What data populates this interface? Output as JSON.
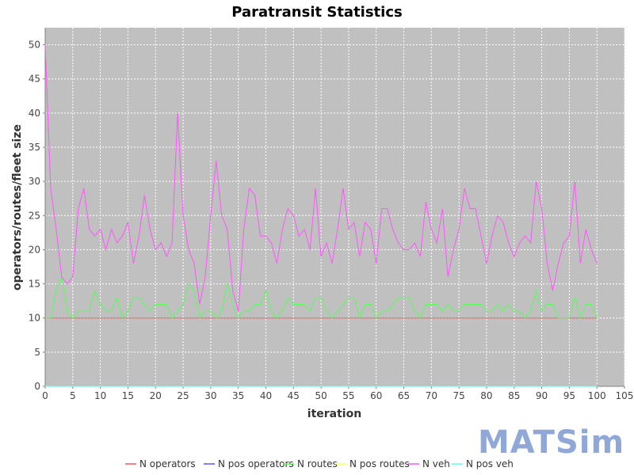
{
  "logo": {
    "text": "MATSim",
    "color": "#8fa8d8"
  },
  "chart_data": {
    "type": "line",
    "title": "Paratransit Statistics",
    "xlabel": "iteration",
    "ylabel": "operators/routes/fleet size",
    "xlim": [
      0,
      105
    ],
    "ylim": [
      0,
      52.5
    ],
    "xticks": [
      0,
      5,
      10,
      15,
      20,
      25,
      30,
      35,
      40,
      45,
      50,
      55,
      60,
      65,
      70,
      75,
      80,
      85,
      90,
      95,
      100,
      105
    ],
    "yticks": [
      0,
      5,
      10,
      15,
      20,
      25,
      30,
      35,
      40,
      45,
      50
    ],
    "grid": true,
    "plot_background": "#c0c0c0",
    "legend_position": "bottom",
    "x": [
      0,
      1,
      2,
      3,
      4,
      5,
      6,
      7,
      8,
      9,
      10,
      11,
      12,
      13,
      14,
      15,
      16,
      17,
      18,
      19,
      20,
      21,
      22,
      23,
      24,
      25,
      26,
      27,
      28,
      29,
      30,
      31,
      32,
      33,
      34,
      35,
      36,
      37,
      38,
      39,
      40,
      41,
      42,
      43,
      44,
      45,
      46,
      47,
      48,
      49,
      50,
      51,
      52,
      53,
      54,
      55,
      56,
      57,
      58,
      59,
      60,
      61,
      62,
      63,
      64,
      65,
      66,
      67,
      68,
      69,
      70,
      71,
      72,
      73,
      74,
      75,
      76,
      77,
      78,
      79,
      80,
      81,
      82,
      83,
      84,
      85,
      86,
      87,
      88,
      89,
      90,
      91,
      92,
      93,
      94,
      95,
      96,
      97,
      98,
      99,
      100
    ],
    "series": [
      {
        "name": "N operators",
        "color": "#ff5555",
        "values": [
          10,
          10,
          10,
          10,
          10,
          10,
          10,
          10,
          10,
          10,
          10,
          10,
          10,
          10,
          10,
          10,
          10,
          10,
          10,
          10,
          10,
          10,
          10,
          10,
          10,
          10,
          10,
          10,
          10,
          10,
          10,
          10,
          10,
          10,
          10,
          10,
          10,
          10,
          10,
          10,
          10,
          10,
          10,
          10,
          10,
          10,
          10,
          10,
          10,
          10,
          10,
          10,
          10,
          10,
          10,
          10,
          10,
          10,
          10,
          10,
          10,
          10,
          10,
          10,
          10,
          10,
          10,
          10,
          10,
          10,
          10,
          10,
          10,
          10,
          10,
          10,
          10,
          10,
          10,
          10,
          10,
          10,
          10,
          10,
          10,
          10,
          10,
          10,
          10,
          10,
          10,
          10,
          10,
          10,
          10,
          10,
          10,
          10,
          10,
          10,
          10
        ]
      },
      {
        "name": "N pos operators",
        "color": "#5555ff",
        "values": [
          0,
          0,
          0,
          0,
          0,
          0,
          0,
          0,
          0,
          0,
          0,
          0,
          0,
          0,
          0,
          0,
          0,
          0,
          0,
          0,
          0,
          0,
          0,
          0,
          0,
          0,
          0,
          0,
          0,
          0,
          0,
          0,
          0,
          0,
          0,
          0,
          0,
          0,
          0,
          0,
          0,
          0,
          0,
          0,
          0,
          0,
          0,
          0,
          0,
          0,
          0,
          0,
          0,
          0,
          0,
          0,
          0,
          0,
          0,
          0,
          0,
          0,
          0,
          0,
          0,
          0,
          0,
          0,
          0,
          0,
          0,
          0,
          0,
          0,
          0,
          0,
          0,
          0,
          0,
          0,
          0,
          0,
          0,
          0,
          0,
          0,
          0,
          0,
          0,
          0,
          0,
          0,
          0,
          0,
          0,
          0,
          0,
          0,
          0,
          0,
          0
        ]
      },
      {
        "name": "N routes",
        "color": "#55ff55",
        "values": [
          10,
          10,
          14,
          16,
          11,
          10,
          11,
          11,
          11,
          14,
          12,
          11,
          11,
          13,
          10,
          11,
          13,
          13,
          12,
          11,
          12,
          12,
          12,
          10,
          11,
          12,
          15,
          14,
          10,
          11,
          11,
          10,
          11,
          15,
          12,
          10,
          11,
          11,
          12,
          12,
          14,
          11,
          10,
          11,
          13,
          12,
          12,
          12,
          11,
          13,
          13,
          11,
          10,
          11,
          12,
          13,
          13,
          10,
          12,
          12,
          10,
          11,
          11,
          12,
          13,
          13,
          13,
          11,
          10,
          12,
          12,
          12,
          11,
          12,
          11,
          11,
          12,
          12,
          12,
          12,
          11,
          11,
          12,
          11,
          12,
          11,
          11,
          10,
          11,
          14,
          11,
          12,
          12,
          10,
          10,
          10,
          13,
          10,
          12,
          12,
          10
        ]
      },
      {
        "name": "N pos routes",
        "color": "#ffff55",
        "values": [
          0,
          0,
          0,
          0,
          0,
          0,
          0,
          0,
          0,
          0,
          0,
          0,
          0,
          0,
          0,
          0,
          0,
          0,
          0,
          0,
          0,
          0,
          0,
          0,
          0,
          0,
          0,
          0,
          0,
          0,
          0,
          0,
          0,
          0,
          0,
          0,
          0,
          0,
          0,
          0,
          0,
          0,
          0,
          0,
          0,
          0,
          0,
          0,
          0,
          0,
          0,
          0,
          0,
          0,
          0,
          0,
          0,
          0,
          0,
          0,
          0,
          0,
          0,
          0,
          0,
          0,
          0,
          0,
          0,
          0,
          0,
          0,
          0,
          0,
          0,
          0,
          0,
          0,
          0,
          0,
          0,
          0,
          0,
          0,
          0,
          0,
          0,
          0,
          0,
          0,
          0,
          0,
          0,
          0,
          0,
          0,
          0,
          0,
          0,
          0,
          0
        ]
      },
      {
        "name": "N veh",
        "color": "#ff55ff",
        "values": [
          50,
          29,
          23,
          16,
          15,
          16,
          26,
          29,
          23,
          22,
          23,
          20,
          23,
          21,
          22,
          24,
          18,
          22,
          28,
          23,
          20,
          21,
          19,
          21,
          40,
          25,
          20,
          18,
          12,
          16,
          25,
          33,
          25,
          23,
          14,
          11,
          23,
          29,
          28,
          22,
          22,
          21,
          18,
          23,
          26,
          25,
          22,
          23,
          20,
          29,
          19,
          21,
          18,
          23,
          29,
          23,
          24,
          19,
          24,
          23,
          18,
          26,
          26,
          23,
          21,
          20,
          20,
          21,
          19,
          27,
          23,
          21,
          26,
          16,
          20,
          23,
          29,
          26,
          26,
          22,
          18,
          22,
          25,
          24,
          21,
          19,
          21,
          22,
          21,
          30,
          26,
          18,
          14,
          18,
          21,
          22,
          30,
          18,
          23,
          20,
          18
        ]
      },
      {
        "name": "N pos veh",
        "color": "#55ffff",
        "values": [
          0,
          0,
          0,
          0,
          0,
          0,
          0,
          0,
          0,
          0,
          0,
          0,
          0,
          0,
          0,
          0,
          0,
          0,
          0,
          0,
          0,
          0,
          0,
          0,
          0,
          0,
          0,
          0,
          0,
          0,
          0,
          0,
          0,
          0,
          0,
          0,
          0,
          0,
          0,
          0,
          0,
          0,
          0,
          0,
          0,
          0,
          0,
          0,
          0,
          0,
          0,
          0,
          0,
          0,
          0,
          0,
          0,
          0,
          0,
          0,
          0,
          0,
          0,
          0,
          0,
          0,
          0,
          0,
          0,
          0,
          0,
          0,
          0,
          0,
          0,
          0,
          0,
          0,
          0,
          0,
          0,
          0,
          0,
          0,
          0,
          0,
          0,
          0,
          0,
          0,
          0,
          0,
          0,
          0,
          0,
          0,
          0,
          0,
          0,
          0,
          0
        ]
      }
    ]
  }
}
